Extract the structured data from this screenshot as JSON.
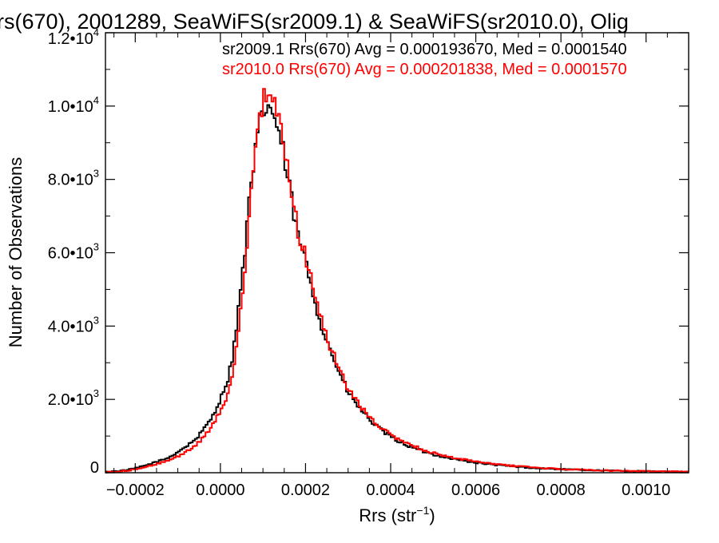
{
  "chart_data": {
    "type": "line",
    "title": "rs(670), 2001289, SeaWiFS(sr2009.1) & SeaWiFS(sr2010.0), Olig",
    "xlabel": "Rrs (str",
    "xlabel_sup": "−1",
    "xlabel_close": ")",
    "ylabel": "Number of Observations",
    "xlim": [
      -0.00027,
      0.0011
    ],
    "ylim": [
      0,
      12000
    ],
    "x_ticks": [
      {
        "value": -0.0002,
        "label": "−0.0002"
      },
      {
        "value": 0.0,
        "label": "0.0000"
      },
      {
        "value": 0.0002,
        "label": "0.0002"
      },
      {
        "value": 0.0004,
        "label": "0.0004"
      },
      {
        "value": 0.0006,
        "label": "0.0006"
      },
      {
        "value": 0.0008,
        "label": "0.0008"
      },
      {
        "value": 0.001,
        "label": "0.0010"
      }
    ],
    "y_ticks": [
      {
        "value": 0,
        "mant": "0",
        "exp": ""
      },
      {
        "value": 2000,
        "mant": "2.0•10",
        "exp": "3"
      },
      {
        "value": 4000,
        "mant": "4.0•10",
        "exp": "3"
      },
      {
        "value": 6000,
        "mant": "6.0•10",
        "exp": "3"
      },
      {
        "value": 8000,
        "mant": "8.0•10",
        "exp": "3"
      },
      {
        "value": 10000,
        "mant": "1.0•10",
        "exp": "4"
      },
      {
        "value": 12000,
        "mant": "1.2•10",
        "exp": "4"
      }
    ],
    "grid": false,
    "legend_placement": "top-right",
    "series": [
      {
        "label": "sr2009.1 Rrs(670) Avg = 0.000193670, Med = 0.0001540",
        "color": "#000000",
        "points": [
          [
            -0.00027,
            20
          ],
          [
            -0.00025,
            40
          ],
          [
            -0.00022,
            70
          ],
          [
            -0.0002,
            120
          ],
          [
            -0.00018,
            180
          ],
          [
            -0.00016,
            260
          ],
          [
            -0.00014,
            330
          ],
          [
            -0.00012,
            420
          ],
          [
            -0.0001,
            570
          ],
          [
            -8e-05,
            720
          ],
          [
            -6e-05,
            900
          ],
          [
            -4e-05,
            1150
          ],
          [
            -2e-05,
            1520
          ],
          [
            0.0,
            2000
          ],
          [
            2e-05,
            2650
          ],
          [
            3e-05,
            3300
          ],
          [
            4e-05,
            4200
          ],
          [
            5e-05,
            5200
          ],
          [
            6e-05,
            6400
          ],
          [
            7e-05,
            7600
          ],
          [
            8e-05,
            8500
          ],
          [
            9e-05,
            9300
          ],
          [
            0.0001,
            9900
          ],
          [
            0.00011,
            10000
          ],
          [
            0.00012,
            9900
          ],
          [
            0.00013,
            9600
          ],
          [
            0.00014,
            9100
          ],
          [
            0.00015,
            8600
          ],
          [
            0.00016,
            7900
          ],
          [
            0.00017,
            7250
          ],
          [
            0.00018,
            6550
          ],
          [
            0.0002,
            5750
          ],
          [
            0.00022,
            4800
          ],
          [
            0.00024,
            3900
          ],
          [
            0.00026,
            3300
          ],
          [
            0.00028,
            2700
          ],
          [
            0.0003,
            2200
          ],
          [
            0.00032,
            1860
          ],
          [
            0.00034,
            1580
          ],
          [
            0.00036,
            1340
          ],
          [
            0.00038,
            1140
          ],
          [
            0.0004,
            980
          ],
          [
            0.00042,
            850
          ],
          [
            0.00044,
            740
          ],
          [
            0.00046,
            650
          ],
          [
            0.00048,
            570
          ],
          [
            0.0005,
            500
          ],
          [
            0.00053,
            420
          ],
          [
            0.00056,
            350
          ],
          [
            0.0006,
            275
          ],
          [
            0.00065,
            210
          ],
          [
            0.0007,
            160
          ],
          [
            0.00075,
            120
          ],
          [
            0.0008,
            95
          ],
          [
            0.00085,
            75
          ],
          [
            0.0009,
            60
          ],
          [
            0.00095,
            48
          ],
          [
            0.001,
            38
          ],
          [
            0.00105,
            30
          ],
          [
            0.0011,
            25
          ]
        ]
      },
      {
        "label": "sr2010.0 Rrs(670) Avg = 0.000201838, Med = 0.0001570",
        "color": "#ff0000",
        "points": [
          [
            -0.00027,
            15
          ],
          [
            -0.00025,
            30
          ],
          [
            -0.00022,
            55
          ],
          [
            -0.0002,
            95
          ],
          [
            -0.00018,
            150
          ],
          [
            -0.00016,
            210
          ],
          [
            -0.00014,
            270
          ],
          [
            -0.00012,
            340
          ],
          [
            -0.0001,
            450
          ],
          [
            -8e-05,
            580
          ],
          [
            -6e-05,
            730
          ],
          [
            -4e-05,
            950
          ],
          [
            -2e-05,
            1280
          ],
          [
            0.0,
            1650
          ],
          [
            2e-05,
            2200
          ],
          [
            3e-05,
            2750
          ],
          [
            4e-05,
            3600
          ],
          [
            5e-05,
            4700
          ],
          [
            6e-05,
            5900
          ],
          [
            7e-05,
            7200
          ],
          [
            8e-05,
            8400
          ],
          [
            9e-05,
            9300
          ],
          [
            0.0001,
            10100
          ],
          [
            0.00011,
            10500
          ],
          [
            0.00012,
            10400
          ],
          [
            0.00013,
            10000
          ],
          [
            0.00014,
            9400
          ],
          [
            0.00015,
            8800
          ],
          [
            0.00016,
            8100
          ],
          [
            0.00017,
            7450
          ],
          [
            0.00018,
            6750
          ],
          [
            0.0002,
            5900
          ],
          [
            0.00022,
            4950
          ],
          [
            0.00024,
            4050
          ],
          [
            0.00026,
            3400
          ],
          [
            0.00028,
            2800
          ],
          [
            0.0003,
            2300
          ],
          [
            0.00032,
            1940
          ],
          [
            0.00034,
            1650
          ],
          [
            0.00036,
            1400
          ],
          [
            0.00038,
            1200
          ],
          [
            0.0004,
            1040
          ],
          [
            0.00042,
            900
          ],
          [
            0.00044,
            790
          ],
          [
            0.00046,
            700
          ],
          [
            0.00048,
            610
          ],
          [
            0.0005,
            540
          ],
          [
            0.00053,
            455
          ],
          [
            0.00056,
            380
          ],
          [
            0.0006,
            300
          ],
          [
            0.00065,
            230
          ],
          [
            0.0007,
            175
          ],
          [
            0.00075,
            130
          ],
          [
            0.0008,
            100
          ],
          [
            0.00085,
            80
          ],
          [
            0.0009,
            63
          ],
          [
            0.00095,
            50
          ],
          [
            0.001,
            40
          ],
          [
            0.00105,
            32
          ],
          [
            0.0011,
            26
          ]
        ]
      }
    ]
  }
}
